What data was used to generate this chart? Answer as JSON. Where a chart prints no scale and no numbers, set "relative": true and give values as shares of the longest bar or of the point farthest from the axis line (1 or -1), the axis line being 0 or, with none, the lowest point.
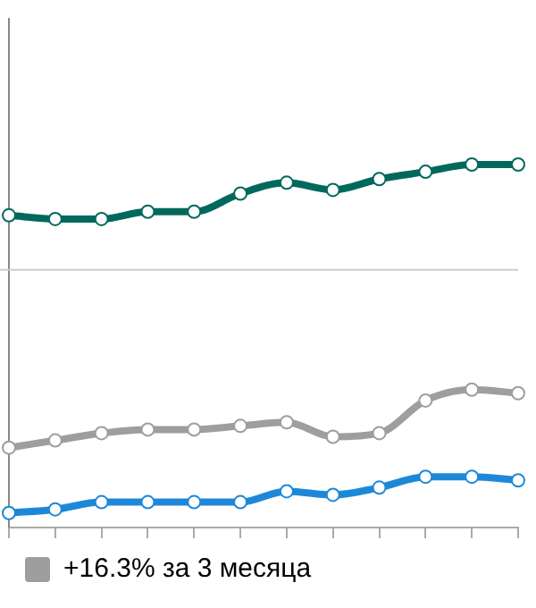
{
  "chart_data": {
    "type": "line",
    "relative": true,
    "categories": [
      null,
      null,
      null,
      null,
      null,
      null,
      null,
      null,
      null,
      null,
      null,
      null
    ],
    "series": [
      {
        "color": "#00695c",
        "values": [
          0.86,
          0.85,
          0.85,
          0.87,
          0.87,
          0.92,
          0.95,
          0.93,
          0.96,
          0.98,
          1,
          1
        ]
      },
      {
        "name": "+16.3% за 3 месяца",
        "color": "#9e9e9e",
        "values": [
          0.22,
          0.24,
          0.26,
          0.27,
          0.27,
          0.28,
          0.29,
          0.25,
          0.26,
          0.35,
          0.38,
          0.37
        ]
      },
      {
        "color": "#1e88d8",
        "values": [
          0.04,
          0.05,
          0.07,
          0.07,
          0.07,
          0.07,
          0.1,
          0.09,
          0.11,
          0.14,
          0.14,
          0.13
        ]
      }
    ],
    "ref_lines": [
      {
        "axis": "y",
        "value": 0.71,
        "color": "#cccccc"
      }
    ],
    "marker": "circle",
    "legend": "bottom"
  }
}
